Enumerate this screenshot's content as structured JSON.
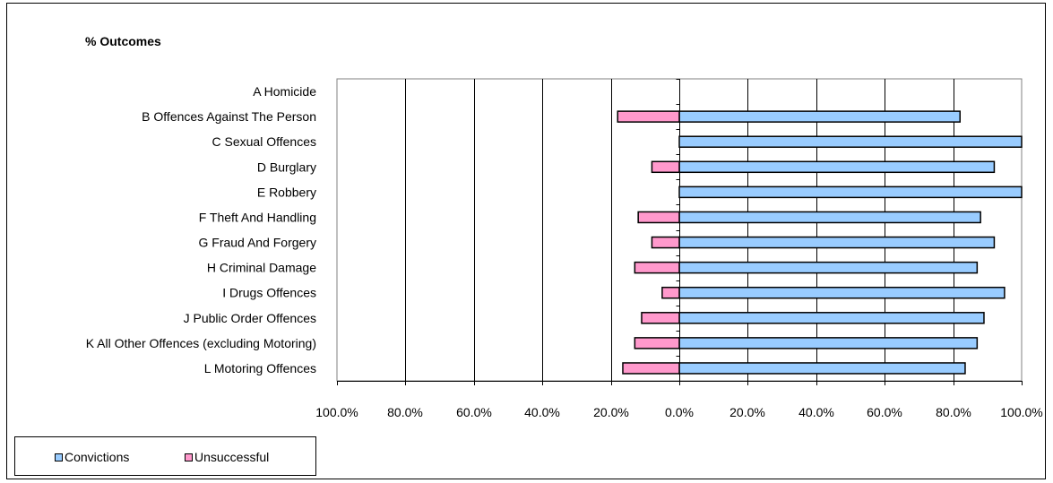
{
  "chart_data": {
    "type": "bar",
    "orientation": "horizontal",
    "stacked": true,
    "title": "% Outcomes",
    "categories": [
      "A Homicide",
      "B Offences Against The Person",
      "C Sexual Offences",
      "D Burglary",
      "E Robbery",
      "F Theft And Handling",
      "G Fraud And Forgery",
      "H Criminal Damage",
      "I Drugs Offences",
      "J Public Order Offences",
      "K All Other Offences (excluding Motoring)",
      "L Motoring Offences"
    ],
    "series": [
      {
        "name": "Convictions",
        "color": "#99ccff",
        "values": [
          0,
          82.0,
          100.0,
          92.0,
          100.0,
          88.0,
          92.0,
          87.0,
          95.0,
          89.0,
          87.0,
          83.5
        ]
      },
      {
        "name": "Unsuccessful",
        "color": "#ff99cc",
        "values": [
          0,
          -18.0,
          0,
          -8.0,
          0,
          -12.0,
          -8.0,
          -13.0,
          -5.0,
          -11.0,
          -13.0,
          -16.5
        ]
      }
    ],
    "xlim": [
      -100,
      100
    ],
    "xticks": [
      -100,
      -80,
      -60,
      -40,
      -20,
      0,
      20,
      40,
      60,
      80,
      100
    ],
    "xtick_labels": [
      "100.0%",
      "80.0%",
      "60.0%",
      "40.0%",
      "20.0%",
      "0.0%",
      "20.0%",
      "40.0%",
      "60.0%",
      "80.0%",
      "100.0%"
    ],
    "grid": true,
    "legend_position": "bottom-left"
  }
}
